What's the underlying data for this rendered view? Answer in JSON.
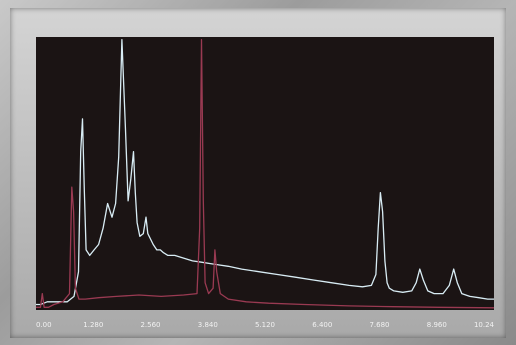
{
  "chart_data": {
    "type": "line",
    "xlim": [
      0,
      10.24
    ],
    "ylim": [
      0,
      100
    ],
    "x_ticks": [
      "0.00",
      "1.280",
      "2.560",
      "3.840",
      "5.120",
      "6.400",
      "7.680",
      "8.960",
      "10.24"
    ],
    "ylabel": "",
    "grid": false,
    "background": "#1b1414",
    "series": [
      {
        "color": "#d8ecf4",
        "x": [
          0.0,
          0.1,
          0.25,
          0.4,
          0.55,
          0.7,
          0.85,
          0.95,
          1.0,
          1.04,
          1.08,
          1.12,
          1.2,
          1.3,
          1.4,
          1.5,
          1.6,
          1.7,
          1.78,
          1.85,
          1.92,
          2.0,
          2.06,
          2.12,
          2.18,
          2.22,
          2.26,
          2.32,
          2.4,
          2.46,
          2.5,
          2.56,
          2.62,
          2.7,
          2.78,
          2.85,
          2.95,
          3.1,
          3.3,
          3.5,
          3.7,
          3.9,
          4.1,
          4.3,
          4.6,
          5.0,
          5.4,
          5.8,
          6.2,
          6.6,
          7.0,
          7.3,
          7.5,
          7.6,
          7.65,
          7.7,
          7.75,
          7.8,
          7.85,
          7.9,
          8.0,
          8.2,
          8.4,
          8.5,
          8.58,
          8.66,
          8.76,
          8.9,
          9.1,
          9.24,
          9.34,
          9.42,
          9.52,
          9.7,
          9.9,
          10.1,
          10.24
        ],
        "y": [
          2,
          2,
          3,
          3,
          3,
          3,
          5,
          14,
          58,
          70,
          44,
          22,
          20,
          22,
          24,
          30,
          39,
          34,
          39,
          56,
          99,
          66,
          40,
          48,
          58,
          43,
          32,
          27,
          28,
          34,
          28,
          26,
          24,
          22,
          22,
          21,
          20,
          20,
          19,
          18,
          17.5,
          17,
          16.5,
          16,
          15,
          14,
          13,
          12,
          11,
          10,
          9,
          8.5,
          9,
          13,
          30,
          43,
          36,
          18,
          10,
          8,
          7,
          6.5,
          7,
          10,
          15,
          11,
          7,
          6,
          6,
          9,
          15,
          10,
          6,
          5,
          4.5,
          4,
          4
        ]
      },
      {
        "color": "#9a3a52",
        "x": [
          0.0,
          0.1,
          0.14,
          0.18,
          0.28,
          0.4,
          0.6,
          0.75,
          0.8,
          0.84,
          0.88,
          0.96,
          1.1,
          1.4,
          1.8,
          2.3,
          2.8,
          3.3,
          3.6,
          3.66,
          3.7,
          3.74,
          3.78,
          3.86,
          3.96,
          4.0,
          4.04,
          4.12,
          4.3,
          4.7,
          5.2,
          6.0,
          7.0,
          8.0,
          9.0,
          10.24
        ],
        "y": [
          1,
          1,
          6,
          1,
          1,
          2,
          3,
          6,
          45,
          36,
          8,
          4,
          4,
          4.5,
          5,
          5.5,
          5,
          5.5,
          6,
          30,
          99,
          40,
          10,
          6,
          8,
          22,
          14,
          6,
          4,
          3,
          2.5,
          2,
          1.5,
          1.2,
          1,
          0.8
        ]
      }
    ]
  }
}
